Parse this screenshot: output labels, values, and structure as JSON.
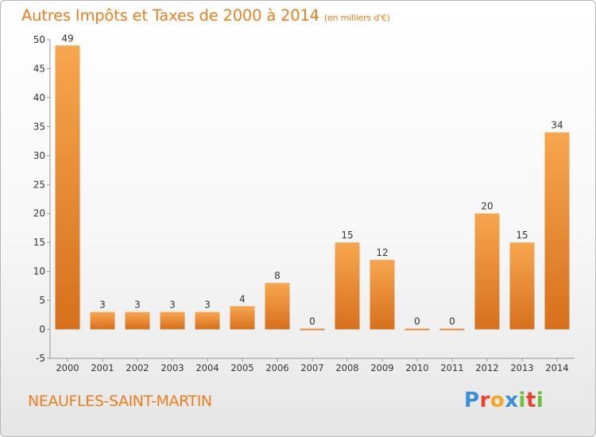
{
  "header": {
    "title": "Autres Impôts et Taxes de 2000 à 2014",
    "unit": "(en milliers d'€)"
  },
  "footer": {
    "commune": "NEAUFLES-SAINT-MARTIN",
    "logo_text": "Proxiti",
    "logo_letters": [
      {
        "ch": "P",
        "color": "#3a8fd6"
      },
      {
        "ch": "r",
        "color": "#e8412c"
      },
      {
        "ch": "o",
        "color": "#f5a623"
      },
      {
        "ch": "x",
        "color": "#3a8fd6"
      },
      {
        "ch": "i",
        "color": "#6cbf3c"
      },
      {
        "ch": "t",
        "color": "#e8412c"
      },
      {
        "ch": "i",
        "color": "#6cbf3c"
      }
    ]
  },
  "chart_data": {
    "type": "bar",
    "title": "Autres Impôts et Taxes de 2000 à 2014",
    "subtitle": "(en milliers d'€)",
    "categories": [
      "2000",
      "2001",
      "2002",
      "2003",
      "2004",
      "2005",
      "2006",
      "2007",
      "2008",
      "2009",
      "2010",
      "2011",
      "2012",
      "2013",
      "2014"
    ],
    "values": [
      49,
      3,
      3,
      3,
      3,
      4,
      8,
      0,
      15,
      12,
      0,
      0,
      20,
      15,
      34
    ],
    "ylim": [
      -5,
      50
    ],
    "yticks": [
      -5,
      0,
      5,
      10,
      15,
      20,
      25,
      30,
      35,
      40,
      45,
      50
    ],
    "grid": false,
    "legend": "none",
    "colors": {
      "bar_light": "#f5a24c",
      "bar_dark": "#d8721f",
      "text": "#333333",
      "axis": "#999999"
    }
  }
}
